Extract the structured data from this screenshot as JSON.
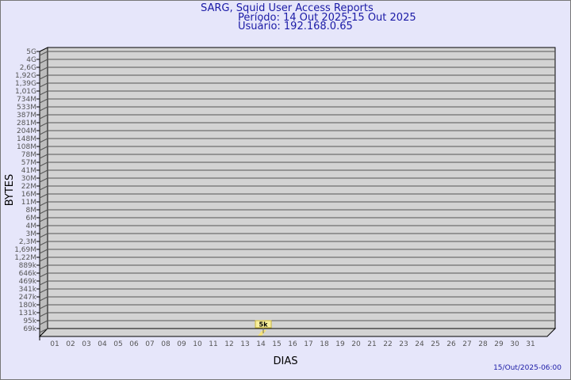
{
  "header": {
    "title": "SARG, Squid User Access Reports",
    "period": "Período: 14 Out 2025-15 Out 2025",
    "user": "Usuário: 192.168.0.65"
  },
  "footer": {
    "timestamp": "15/Out/2025-06:00"
  },
  "chart_data": {
    "type": "bar",
    "xlabel": "DIAS",
    "ylabel": "BYTES",
    "categories": [
      "01",
      "02",
      "03",
      "04",
      "05",
      "06",
      "07",
      "08",
      "09",
      "10",
      "11",
      "12",
      "13",
      "14",
      "15",
      "16",
      "17",
      "18",
      "19",
      "20",
      "21",
      "22",
      "23",
      "24",
      "25",
      "26",
      "27",
      "28",
      "29",
      "30",
      "31"
    ],
    "y_tick_labels": [
      "69k",
      "95k",
      "131k",
      "180k",
      "247k",
      "341k",
      "469k",
      "646k",
      "889k",
      "1,22M",
      "1,69M",
      "2,3M",
      "3M",
      "4M",
      "6M",
      "8M",
      "11M",
      "16M",
      "22M",
      "30M",
      "41M",
      "57M",
      "78M",
      "108M",
      "148M",
      "204M",
      "281M",
      "387M",
      "533M",
      "734M",
      "1,01G",
      "1,39G",
      "1,92G",
      "2,6G",
      "4G",
      "5G"
    ],
    "values": [
      null,
      null,
      null,
      null,
      null,
      null,
      null,
      null,
      null,
      null,
      null,
      null,
      null,
      5000,
      null,
      null,
      null,
      null,
      null,
      null,
      null,
      null,
      null,
      null,
      null,
      null,
      null,
      null,
      null,
      null,
      null
    ],
    "data_labels": {
      "14": "5k"
    },
    "grid": true,
    "colors": {
      "plot_back": "#d3d3d3",
      "plot_side": "#bdbdbd",
      "bar": "#f5e27a",
      "label_bg": "#f8ef9c",
      "title": "#1a1aa6"
    }
  }
}
